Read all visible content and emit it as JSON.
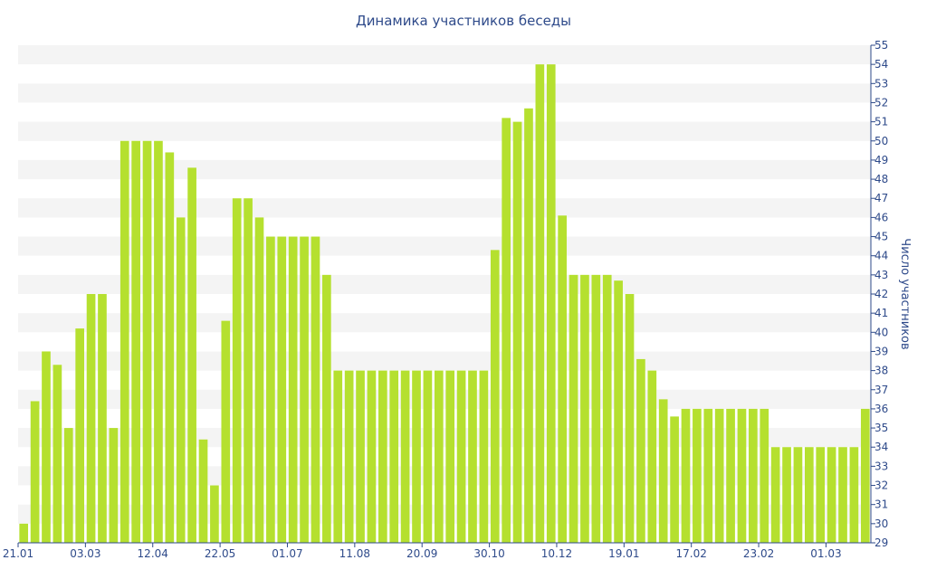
{
  "chart_data": {
    "type": "bar",
    "title": "Динамика участников беседы",
    "ylabel": "Число участников",
    "xlabel": "",
    "ylim": [
      29,
      55
    ],
    "yticks": [
      29,
      30,
      31,
      32,
      33,
      34,
      35,
      36,
      37,
      38,
      39,
      40,
      41,
      42,
      43,
      44,
      45,
      46,
      47,
      48,
      49,
      50,
      51,
      52,
      53,
      54,
      55
    ],
    "x_tick_labels": [
      {
        "index": 0,
        "label": "21.01"
      },
      {
        "index": 6,
        "label": "03.03"
      },
      {
        "index": 12,
        "label": "12.04"
      },
      {
        "index": 18,
        "label": "22.05"
      },
      {
        "index": 24,
        "label": "01.07"
      },
      {
        "index": 30,
        "label": "11.08"
      },
      {
        "index": 36,
        "label": "20.09"
      },
      {
        "index": 42,
        "label": "30.10"
      },
      {
        "index": 48,
        "label": "10.12"
      },
      {
        "index": 54,
        "label": "19.01"
      },
      {
        "index": 60,
        "label": "17.02"
      },
      {
        "index": 66,
        "label": "23.02"
      },
      {
        "index": 72,
        "label": "01.03"
      }
    ],
    "values": [
      30,
      36.4,
      39,
      38.3,
      35,
      40.2,
      42,
      42,
      35,
      50,
      50,
      50,
      50,
      49.4,
      46,
      48.6,
      34.4,
      32,
      40.6,
      47,
      47,
      46,
      45,
      45,
      45,
      45,
      45,
      43,
      38,
      38,
      38,
      38,
      38,
      38,
      38,
      38,
      38,
      38,
      38,
      38,
      38,
      38,
      44.3,
      51.2,
      51,
      51.7,
      54,
      54,
      46.1,
      43,
      43,
      43,
      43,
      42.7,
      42,
      38.6,
      38,
      36.5,
      35.6,
      36,
      36,
      36,
      36,
      36,
      36,
      36,
      36,
      34,
      34,
      34,
      34,
      34,
      34,
      34,
      34,
      36
    ],
    "bar_color": "#b5e02f",
    "stripe_color": "#f4f4f4",
    "text_color": "#2e4a8a",
    "grid": "alternating-bands",
    "y_axis_position": "right"
  }
}
